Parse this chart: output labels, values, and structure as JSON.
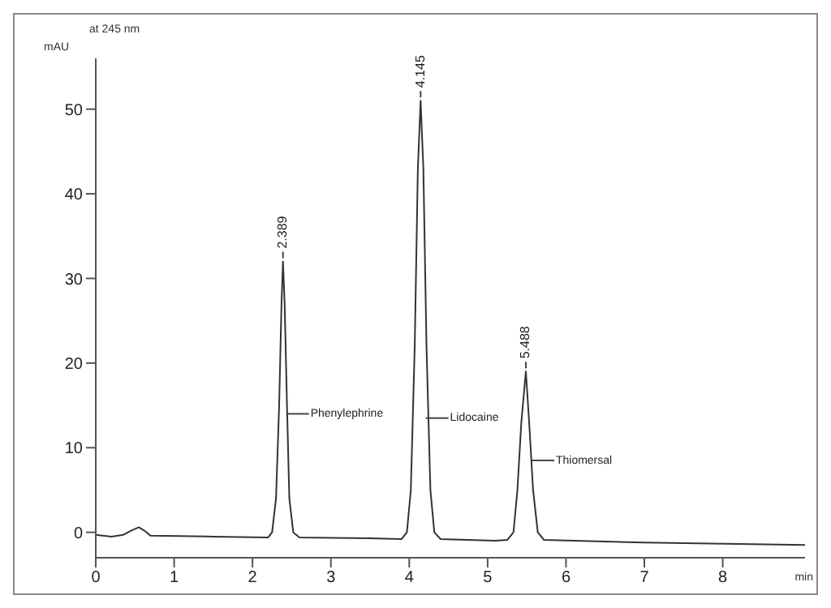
{
  "chart_data": {
    "type": "line",
    "title": "at 245 nm",
    "xlabel": "min",
    "ylabel": "mAU",
    "color": "#333333",
    "x": [
      0,
      0.2,
      0.35,
      0.45,
      0.55,
      0.62,
      0.7,
      1.5,
      2.2,
      2.25,
      2.3,
      2.34,
      2.37,
      2.389,
      2.41,
      2.44,
      2.47,
      2.52,
      2.6,
      3.5,
      3.9,
      3.97,
      4.02,
      4.07,
      4.11,
      4.145,
      4.18,
      4.22,
      4.27,
      4.32,
      4.4,
      5.1,
      5.25,
      5.33,
      5.38,
      5.43,
      5.488,
      5.53,
      5.58,
      5.64,
      5.72,
      7,
      9.05
    ],
    "values": [
      -0.3,
      -0.5,
      -0.3,
      0.2,
      0.6,
      0.2,
      -0.4,
      -0.5,
      -0.6,
      0,
      4,
      15,
      27,
      32,
      27,
      15,
      4,
      0,
      -0.6,
      -0.7,
      -0.8,
      0,
      5,
      22,
      43,
      51,
      43,
      22,
      5,
      0,
      -0.8,
      -1,
      -0.9,
      0,
      5,
      13,
      19,
      13,
      5,
      0,
      -0.9,
      -1.2,
      -1.5
    ],
    "xlim": [
      0,
      9.05
    ],
    "xticks": [
      0,
      1,
      2,
      3,
      4,
      5,
      6,
      7,
      8
    ],
    "ylim": [
      -3,
      56
    ],
    "yticks": [
      0,
      10,
      20,
      30,
      40,
      50
    ],
    "marker": "none",
    "line_style": "solid",
    "annotations": [
      {
        "text": "2.389",
        "x": 2.389,
        "y": 32
      },
      {
        "text": "4.145",
        "x": 4.145,
        "y": 51
      },
      {
        "text": "5.488",
        "x": 5.488,
        "y": 19
      },
      {
        "text": "Phenylephrine",
        "x": 2.43,
        "y": 14
      },
      {
        "text": "Lidocaine",
        "x": 4.21,
        "y": 13.5
      },
      {
        "text": "Thiomersal",
        "x": 5.56,
        "y": 8.5
      }
    ]
  }
}
